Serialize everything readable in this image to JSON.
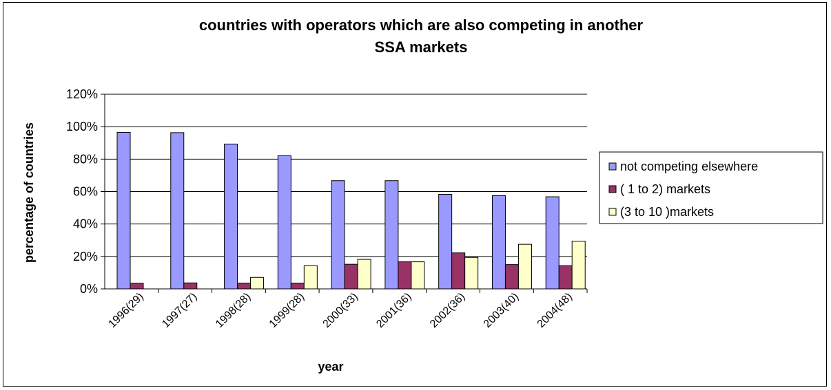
{
  "chart_data": {
    "type": "bar",
    "title_lines": [
      "countries with operators  which are also competing in another",
      "SSA markets"
    ],
    "xlabel": "year",
    "ylabel": "percentage of countries",
    "ylim": [
      0,
      120
    ],
    "yticks": [
      0,
      20,
      40,
      60,
      80,
      100,
      120
    ],
    "ytick_labels": [
      "0%",
      "20%",
      "40%",
      "60%",
      "80%",
      "100%",
      "120%"
    ],
    "categories": [
      "1996(29)",
      "1997(27)",
      "1998(28)",
      "1999(28)",
      "2000(33)",
      "2001(36)",
      "2002(36)",
      "2003(40)",
      "2004(48)"
    ],
    "series": [
      {
        "name": "not competing elsewhere",
        "color": "#9999ff",
        "values": [
          96.5,
          96.3,
          89.3,
          82.1,
          66.7,
          66.7,
          58.3,
          57.5,
          56.8
        ]
      },
      {
        "name": "( 1 to 2) markets",
        "color": "#993366",
        "values": [
          3.5,
          3.7,
          3.6,
          3.6,
          15.2,
          16.7,
          22.2,
          15.0,
          14.3
        ]
      },
      {
        "name": "(3 to 10 )markets",
        "color": "#ffffcc",
        "values": [
          0,
          0,
          7.1,
          14.3,
          18.2,
          16.7,
          19.4,
          27.5,
          29.4
        ]
      }
    ],
    "grid": true,
    "legend_position": "right"
  }
}
